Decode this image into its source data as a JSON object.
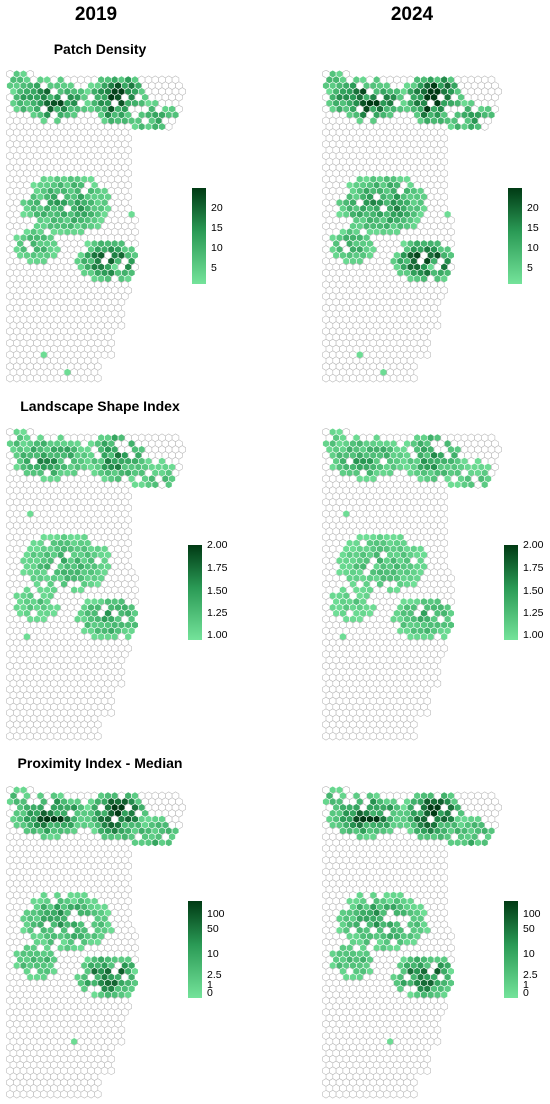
{
  "columns": [
    "2019",
    "2024"
  ],
  "colors": {
    "low": "#74e39a",
    "mid": "#2a9a55",
    "high": "#003a14",
    "empty_stroke": "#b9b9b9"
  },
  "panels": [
    {
      "title": "Patch Density",
      "legend_ticks": [
        "5",
        "10",
        "15",
        "20"
      ],
      "legend_range": [
        1,
        23
      ],
      "intensity": [
        1.0,
        1.15
      ]
    },
    {
      "title": "Landscape Shape Index",
      "legend_ticks": [
        "1.00",
        "1.25",
        "1.50",
        "1.75",
        "2.00"
      ],
      "legend_range": [
        1.0,
        2.0
      ],
      "intensity": [
        0.7,
        0.6
      ]
    },
    {
      "title": "Proximity Index - Median",
      "legend_ticks": [
        "0",
        "1",
        "2.5",
        "10",
        "50",
        "100"
      ],
      "legend_range": [
        0,
        100
      ],
      "intensity": [
        1.05,
        1.05
      ]
    }
  ]
}
